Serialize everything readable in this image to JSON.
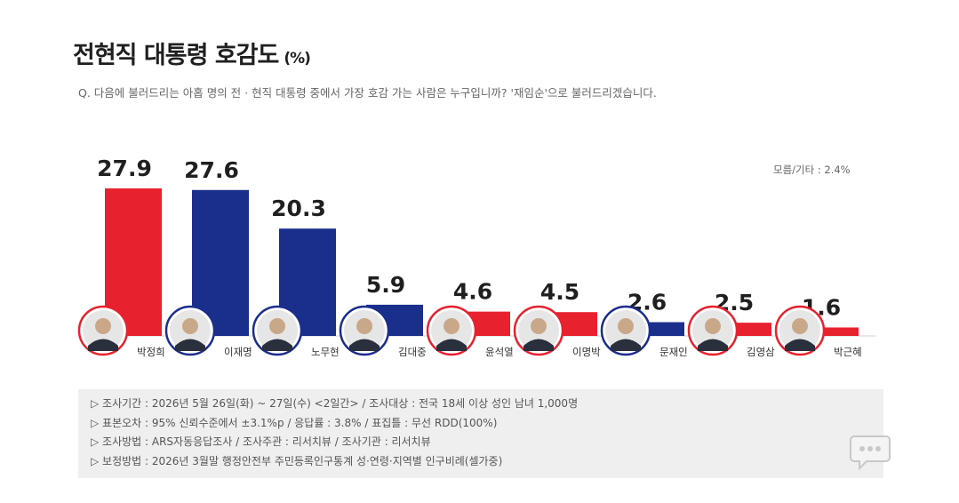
{
  "title": "전현직 대통령 호감도",
  "title_unit": "(%)",
  "question": "Q. 다음에 불러드리는 아홉 명의 전 · 현직 대통령 중에서 가장 호감 가는 사람은 누구입니까?  '재임순'으로 불러드리겠습니다.",
  "other_note": "모름/기타 : 2.4%",
  "chart_data": {
    "type": "bar",
    "title": "전현직 대통령 호감도 (%)",
    "categories": [
      "박정희",
      "이재명",
      "노무현",
      "김대중",
      "윤석열",
      "이명박",
      "문재인",
      "김영삼",
      "박근혜"
    ],
    "values": [
      27.9,
      27.6,
      20.3,
      5.9,
      4.6,
      4.5,
      2.6,
      2.5,
      1.6
    ],
    "value_labels": [
      "27.9",
      "27.6",
      "20.3",
      "5.9",
      "4.6",
      "4.5",
      "2.6",
      "2.5",
      "1.6"
    ],
    "bar_colors": [
      "#e8212e",
      "#1a2e8c",
      "#1a2e8c",
      "#1a2e8c",
      "#e8212e",
      "#e8212e",
      "#1a2e8c",
      "#e8212e",
      "#e8212e"
    ],
    "ylim": [
      0,
      30
    ],
    "grid": false,
    "legend": "none"
  },
  "colors": {
    "red": "#e8212e",
    "blue": "#1a2e8c",
    "footer_bg": "#efefef"
  },
  "footer": {
    "lines": [
      "▷ 조사기간 : 2026년 5월 26일(화) ~ 27일(수) <2일간> / 조사대상 : 전국 18세 이상 성인 남녀 1,000명",
      "▷ 표본오차 : 95% 신뢰수준에서 ±3.1%p / 응답률 : 3.8% / 표집틀 : 무선 RDD(100%)",
      "▷ 조사방법 : ARS자동응답조사 / 조사주관 : 리서치뷰 / 조사기관 : 리서치뷰",
      "▷ 보정방법 : 2026년 3월말 행정안전부 주민등록인구통계 성·연령·지역별 인구비례(셀가중)"
    ]
  },
  "chat_icon": "chat-bubble-icon"
}
